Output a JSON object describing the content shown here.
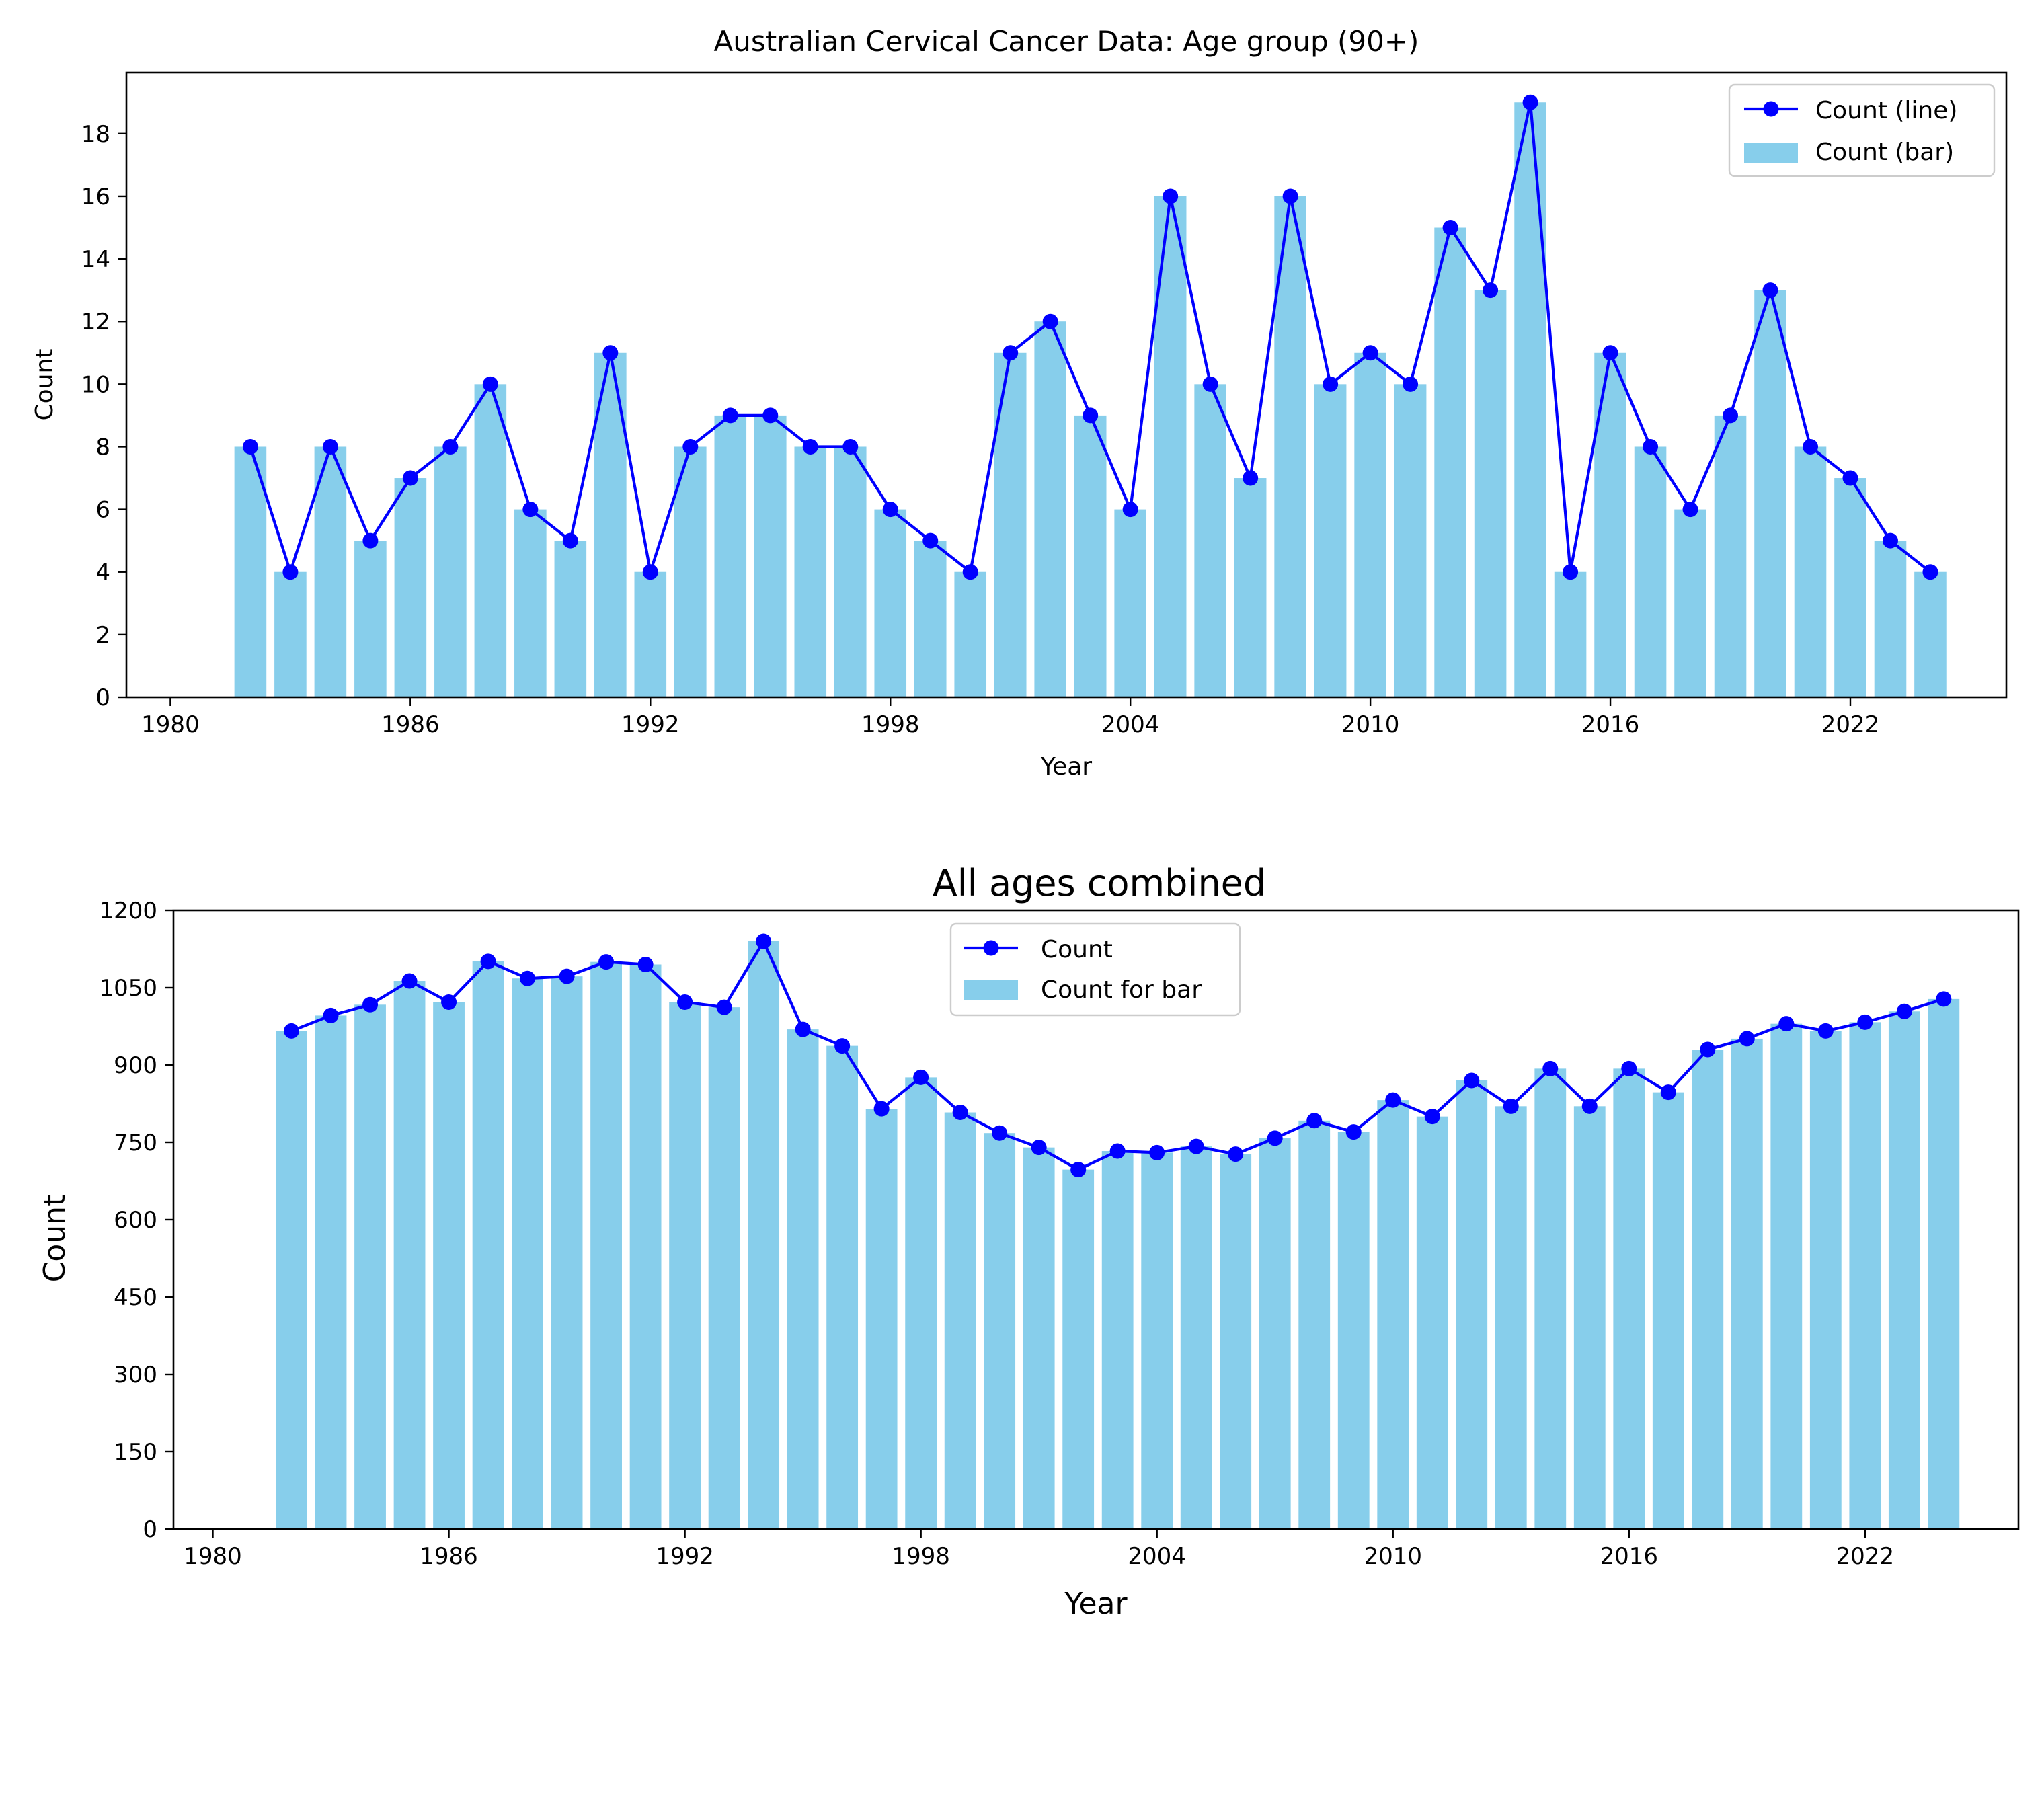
{
  "colors": {
    "line": "#0000FF",
    "bar": "#87CEEB"
  },
  "chart_data": [
    {
      "type": "bar",
      "combined_with": "line",
      "title": "Australian Cervical Cancer Data: Age group (90+)",
      "xlabel": "Year",
      "ylabel": "Count",
      "xlim": [
        1978.9,
        2025.9
      ],
      "ylim": [
        0,
        19.95
      ],
      "x_ticks": [
        1980,
        1986,
        1992,
        1998,
        2004,
        2010,
        2016,
        2022
      ],
      "y_ticks": [
        0,
        2,
        4,
        6,
        8,
        10,
        12,
        14,
        16,
        18
      ],
      "grid": false,
      "legend_position": "top-right",
      "legend": [
        "Count (line)",
        "Count (bar)"
      ],
      "x": [
        1982,
        1983,
        1984,
        1985,
        1986,
        1987,
        1988,
        1989,
        1990,
        1991,
        1992,
        1993,
        1994,
        1995,
        1996,
        1997,
        1998,
        1999,
        2000,
        2001,
        2002,
        2003,
        2004,
        2005,
        2006,
        2007,
        2008,
        2009,
        2010,
        2011,
        2012,
        2013,
        2014,
        2015,
        2016,
        2017,
        2018,
        2019,
        2020,
        2021,
        2022,
        2023,
        2024
      ],
      "series": [
        {
          "name": "Count (line)",
          "type": "line",
          "values": [
            8,
            4,
            8,
            5,
            7,
            8,
            10,
            6,
            5,
            11,
            4,
            8,
            9,
            9,
            8,
            8,
            6,
            5,
            4,
            11,
            12,
            9,
            6,
            16,
            10,
            7,
            16,
            10,
            11,
            10,
            15,
            13,
            19,
            4,
            11,
            8,
            6,
            9,
            13,
            8,
            7,
            5,
            4
          ]
        },
        {
          "name": "Count (bar)",
          "type": "bar",
          "values": [
            8,
            4,
            8,
            5,
            7,
            8,
            10,
            6,
            5,
            11,
            4,
            8,
            9,
            9,
            8,
            8,
            6,
            5,
            4,
            11,
            12,
            9,
            6,
            16,
            10,
            7,
            16,
            10,
            11,
            10,
            15,
            13,
            19,
            4,
            11,
            8,
            6,
            9,
            13,
            8,
            7,
            5,
            4
          ]
        }
      ]
    },
    {
      "type": "bar",
      "combined_with": "line",
      "title": "All ages combined",
      "xlabel": "Year",
      "ylabel": "Count",
      "xlim": [
        1979.0,
        2025.9
      ],
      "ylim": [
        0,
        1200
      ],
      "x_ticks": [
        1980,
        1986,
        1992,
        1998,
        2004,
        2010,
        2016,
        2022
      ],
      "y_ticks": [
        0,
        150,
        300,
        450,
        600,
        750,
        900,
        1050,
        1200
      ],
      "grid": false,
      "legend_position": "top-center",
      "legend": [
        "Count",
        "Count for bar"
      ],
      "x": [
        1982,
        1983,
        1984,
        1985,
        1986,
        1987,
        1988,
        1989,
        1990,
        1991,
        1992,
        1993,
        1994,
        1995,
        1996,
        1997,
        1998,
        1999,
        2000,
        2001,
        2002,
        2003,
        2004,
        2005,
        2006,
        2007,
        2008,
        2009,
        2010,
        2011,
        2012,
        2013,
        2014,
        2015,
        2016,
        2017,
        2018,
        2019,
        2020,
        2021,
        2022,
        2023,
        2024
      ],
      "series": [
        {
          "name": "Count",
          "type": "line",
          "values": [
            966,
            996,
            1017,
            1063,
            1022,
            1101,
            1068,
            1072,
            1100,
            1095,
            1022,
            1012,
            1140,
            969,
            937,
            815,
            876,
            808,
            768,
            740,
            697,
            733,
            730,
            742,
            727,
            758,
            792,
            770,
            832,
            800,
            870,
            820,
            893,
            820,
            893,
            847,
            930,
            951,
            980,
            966,
            983,
            1004,
            1028
          ]
        },
        {
          "name": "Count for bar",
          "type": "bar",
          "values": [
            966,
            996,
            1017,
            1063,
            1022,
            1101,
            1068,
            1072,
            1100,
            1095,
            1022,
            1012,
            1140,
            969,
            937,
            815,
            876,
            808,
            768,
            740,
            697,
            733,
            730,
            742,
            727,
            758,
            792,
            770,
            832,
            800,
            870,
            820,
            893,
            820,
            893,
            847,
            930,
            951,
            980,
            966,
            983,
            1004,
            1028
          ]
        }
      ]
    }
  ]
}
